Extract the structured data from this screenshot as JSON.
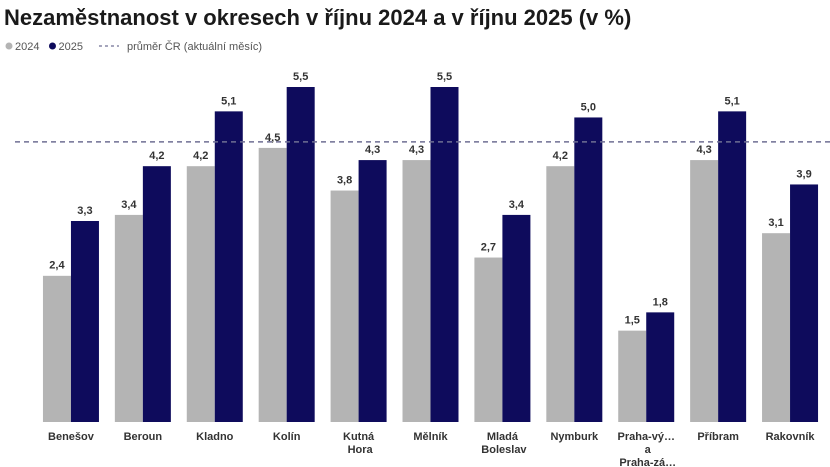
{
  "chart_data": {
    "type": "bar",
    "title": "Nezaměstnanost v okresech v říjnu 2024 a v říjnu 2025 (v %)",
    "categories": [
      "Benešov",
      "Beroun",
      "Kladno",
      "Kolín",
      "Kutná Hora",
      "Mělník",
      "Mladá Boleslav",
      "Nymburk",
      "Praha-vý… a Praha-zá…",
      "Příbram",
      "Rakovník"
    ],
    "series": [
      {
        "name": "2024",
        "color": "#b4b4b4",
        "values": [
          2.4,
          3.4,
          4.2,
          4.5,
          3.8,
          4.3,
          2.7,
          4.2,
          1.5,
          4.3,
          3.1
        ],
        "value_labels": [
          "2,4",
          "3,4",
          "4,2",
          "4,5",
          "3,8",
          "4,3",
          "2,7",
          "4,2",
          "1,5",
          "4,3",
          "3,1"
        ]
      },
      {
        "name": "2025",
        "color": "#0e0b5c",
        "values": [
          3.3,
          4.2,
          5.1,
          5.5,
          4.3,
          5.5,
          3.4,
          5.0,
          1.8,
          5.1,
          3.9
        ],
        "value_labels": [
          "3,3",
          "4,2",
          "5,1",
          "5,5",
          "4,3",
          "5,5",
          "3,4",
          "5,0",
          "1,8",
          "5,1",
          "3,9"
        ]
      }
    ],
    "reference_line": {
      "name": "průměr ČR (aktuální měsíc)",
      "value": 4.6,
      "color": "#6f6f93"
    },
    "ylim": [
      0,
      5.5
    ]
  }
}
